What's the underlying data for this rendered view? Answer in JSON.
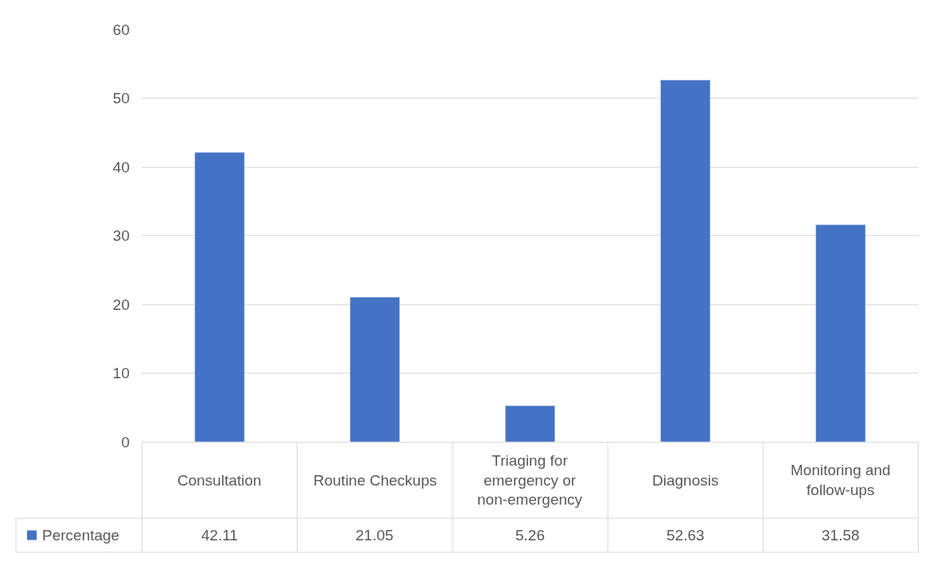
{
  "chart_data": {
    "type": "bar",
    "categories": [
      "Consultation",
      "Routine Checkups",
      "Triaging for emergency or non-emergency",
      "Diagnosis",
      "Monitoring and follow-ups"
    ],
    "series": [
      {
        "name": "Percentage",
        "color": "#4472c4",
        "values": [
          42.11,
          21.05,
          5.26,
          52.63,
          31.58
        ]
      }
    ],
    "ylim": [
      0,
      60
    ],
    "yticks": [
      0,
      10,
      20,
      30,
      40,
      50,
      60
    ],
    "grid": "y",
    "data_labels": true,
    "legend": "bottom left"
  }
}
